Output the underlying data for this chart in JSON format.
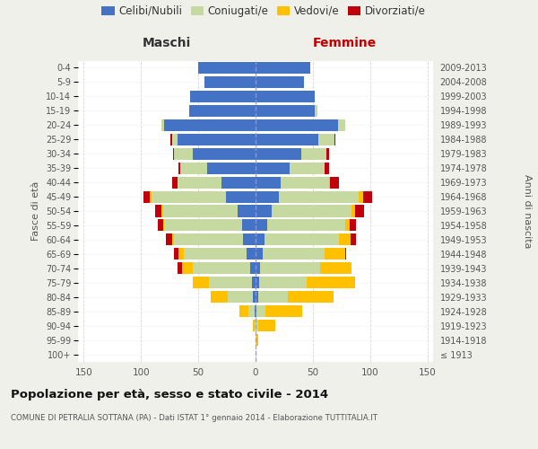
{
  "age_groups": [
    "100+",
    "95-99",
    "90-94",
    "85-89",
    "80-84",
    "75-79",
    "70-74",
    "65-69",
    "60-64",
    "55-59",
    "50-54",
    "45-49",
    "40-44",
    "35-39",
    "30-34",
    "25-29",
    "20-24",
    "15-19",
    "10-14",
    "5-9",
    "0-4"
  ],
  "birth_years": [
    "≤ 1913",
    "1914-1918",
    "1919-1923",
    "1924-1928",
    "1929-1933",
    "1934-1938",
    "1939-1943",
    "1944-1948",
    "1949-1953",
    "1954-1958",
    "1959-1963",
    "1964-1968",
    "1969-1973",
    "1974-1978",
    "1979-1983",
    "1984-1988",
    "1989-1993",
    "1994-1998",
    "1999-2003",
    "2004-2008",
    "2009-2013"
  ],
  "maschi": {
    "celibi": [
      0,
      0,
      0,
      1,
      2,
      3,
      5,
      8,
      11,
      12,
      16,
      26,
      30,
      42,
      55,
      68,
      80,
      58,
      57,
      45,
      50
    ],
    "coniugati": [
      0,
      0,
      1,
      5,
      22,
      38,
      50,
      55,
      60,
      68,
      65,
      65,
      38,
      24,
      16,
      5,
      2,
      0,
      0,
      0,
      0
    ],
    "vedovi": [
      0,
      0,
      1,
      8,
      15,
      14,
      9,
      4,
      2,
      1,
      1,
      1,
      0,
      0,
      0,
      0,
      0,
      0,
      0,
      0,
      0
    ],
    "divorziati": [
      0,
      0,
      0,
      0,
      0,
      0,
      4,
      4,
      5,
      4,
      6,
      6,
      5,
      1,
      1,
      1,
      0,
      0,
      0,
      0,
      0
    ]
  },
  "femmine": {
    "nubili": [
      0,
      0,
      0,
      1,
      2,
      3,
      4,
      6,
      8,
      10,
      14,
      20,
      22,
      30,
      40,
      55,
      72,
      52,
      52,
      42,
      48
    ],
    "coniugate": [
      0,
      1,
      2,
      8,
      26,
      42,
      52,
      54,
      65,
      68,
      70,
      70,
      42,
      30,
      22,
      14,
      6,
      2,
      0,
      0,
      0
    ],
    "vedove": [
      0,
      1,
      15,
      32,
      40,
      42,
      28,
      18,
      10,
      4,
      3,
      4,
      1,
      0,
      0,
      0,
      0,
      0,
      0,
      0,
      0
    ],
    "divorziate": [
      0,
      0,
      0,
      0,
      0,
      0,
      0,
      1,
      5,
      6,
      8,
      8,
      8,
      4,
      2,
      1,
      0,
      0,
      0,
      0,
      0
    ]
  },
  "colors": {
    "celibi_nubili": "#4472c4",
    "coniugati": "#c5d9a0",
    "vedovi": "#ffc000",
    "divorziati": "#c0000a"
  },
  "xlim": 155,
  "title": "Popolazione per età, sesso e stato civile - 2014",
  "subtitle": "COMUNE DI PETRALIA SOTTANA (PA) - Dati ISTAT 1° gennaio 2014 - Elaborazione TUTTITALIA.IT",
  "ylabel_left": "Fasce di età",
  "ylabel_right": "Anni di nascita",
  "xlabel_maschi": "Maschi",
  "xlabel_femmine": "Femmine",
  "bg_color": "#f0f0eb",
  "plot_bg": "#ffffff"
}
